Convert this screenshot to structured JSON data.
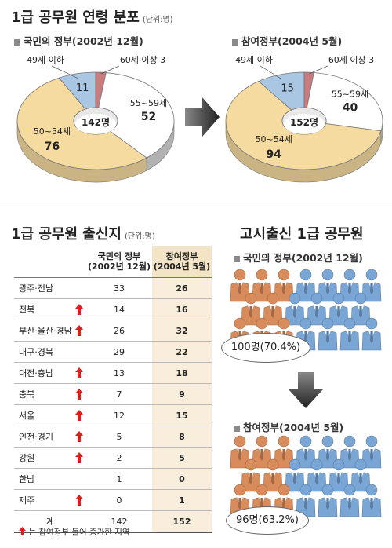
{
  "age_section": {
    "title": "1급 공무원 연령 분포",
    "unit": "(단위:명)",
    "left_subtitle": "국민의 정부(2002년 12월)",
    "right_subtitle": "참여정부(2004년 5월)"
  },
  "origin_section": {
    "title": "1급 공무원 출신지",
    "unit": "(단위:명)",
    "col1_header": [
      "국민의 정부",
      "(2002년 12월)"
    ],
    "col2_header": [
      "참여정부",
      "(2004년 5월)"
    ],
    "legend": "는 참여정부 들어 증가한 지역"
  },
  "exam_section": {
    "title": "고시출신 1급 공무원",
    "before_label": "국민의 정부(2002년 12월)",
    "before_value": "100명(70.4%)",
    "after_label": "참여정부(2004년 5월)",
    "after_value": "96명(63.2%)"
  },
  "colors": {
    "under49": "#a9c6e2",
    "over60": "#c97b7e",
    "age55_59": "#ffffff",
    "age50_54": "#f6dba1",
    "arrow": "#3a3a3a",
    "up_arrow": "#e21b1b",
    "person_orange": "#d98c5b",
    "person_blue": "#7aa6d6"
  },
  "chart_data": [
    {
      "type": "pie",
      "title": "국민의 정부(2002년 12월)",
      "center_label": "142명",
      "slices": [
        {
          "label": "49세 이하",
          "value": 11,
          "color": "#a9c6e2"
        },
        {
          "label": "60세 이상",
          "value": 3,
          "color": "#c97b7e"
        },
        {
          "label": "55~59세",
          "value": 52,
          "color": "#ffffff"
        },
        {
          "label": "50~54세",
          "value": 76,
          "color": "#f6dba1"
        }
      ]
    },
    {
      "type": "pie",
      "title": "참여정부(2004년 5월)",
      "center_label": "152명",
      "slices": [
        {
          "label": "49세 이하",
          "value": 15,
          "color": "#a9c6e2"
        },
        {
          "label": "60세 이상",
          "value": 3,
          "color": "#c97b7e"
        },
        {
          "label": "55~59세",
          "value": 40,
          "color": "#ffffff"
        },
        {
          "label": "50~54세",
          "value": 94,
          "color": "#f6dba1"
        }
      ]
    },
    {
      "type": "table",
      "title": "1급 공무원 출신지",
      "columns": [
        "",
        "국민의 정부 (2002년 12월)",
        "참여정부 (2004년 5월)"
      ],
      "rows": [
        {
          "region": "광주·전남",
          "v2002": 33,
          "v2004": 26,
          "increased": false
        },
        {
          "region": "전북",
          "v2002": 14,
          "v2004": 16,
          "increased": true
        },
        {
          "region": "부산·울산·경남",
          "v2002": 26,
          "v2004": 32,
          "increased": true
        },
        {
          "region": "대구·경북",
          "v2002": 29,
          "v2004": 22,
          "increased": false
        },
        {
          "region": "대전·충남",
          "v2002": 13,
          "v2004": 18,
          "increased": true
        },
        {
          "region": "충북",
          "v2002": 7,
          "v2004": 9,
          "increased": true
        },
        {
          "region": "서울",
          "v2002": 12,
          "v2004": 15,
          "increased": true
        },
        {
          "region": "인천·경기",
          "v2002": 5,
          "v2004": 8,
          "increased": true
        },
        {
          "region": "강원",
          "v2002": 2,
          "v2004": 5,
          "increased": true
        },
        {
          "region": "한남",
          "v2002": 1,
          "v2004": 0,
          "increased": false
        },
        {
          "region": "제주",
          "v2002": 0,
          "v2004": 1,
          "increased": true
        },
        {
          "region": "계",
          "v2002": 142,
          "v2004": 152,
          "increased": false
        }
      ]
    }
  ]
}
